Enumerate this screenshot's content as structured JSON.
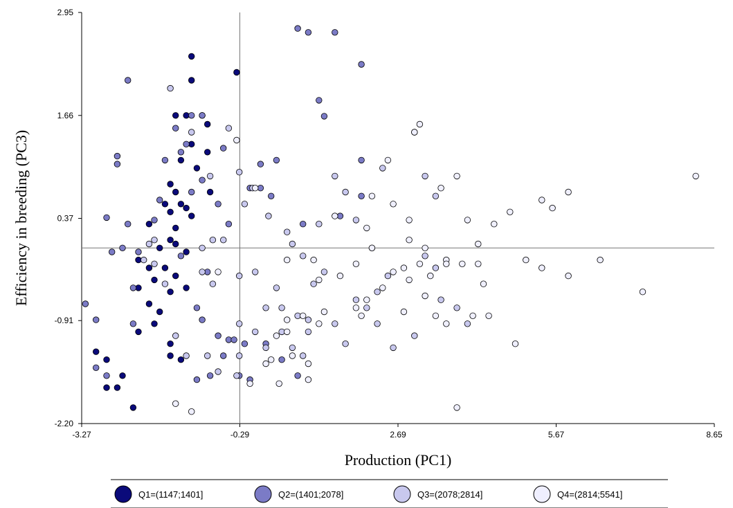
{
  "chart_data": {
    "type": "scatter",
    "title": "",
    "xlabel": "Production (PC1)",
    "ylabel": "Efficiency in breeding (PC3)",
    "xlim": [
      -3.27,
      8.65
    ],
    "ylim": [
      -2.2,
      2.95
    ],
    "x_ticks": [
      "-3.27",
      "-0.29",
      "2.69",
      "5.67",
      "8.65"
    ],
    "y_ticks": [
      "2.95",
      "1.66",
      "0.37",
      "-0.91",
      "-2.20"
    ],
    "reference_lines": {
      "x": -0.29,
      "y": 0.0
    },
    "grid": false,
    "legend_position": "bottom",
    "series": [
      {
        "name": "Q1=(1147;1401]",
        "color": "#0a0a7a",
        "points": [
          [
            -1.2,
            2.4
          ],
          [
            -1.2,
            2.1
          ],
          [
            -0.35,
            2.2
          ],
          [
            -1.5,
            1.66
          ],
          [
            -1.3,
            1.66
          ],
          [
            -1.0,
            1.66
          ],
          [
            -0.9,
            1.55
          ],
          [
            -1.2,
            1.3
          ],
          [
            -1.4,
            1.1
          ],
          [
            -0.9,
            1.2
          ],
          [
            -1.1,
            1.0
          ],
          [
            -1.6,
            0.8
          ],
          [
            -1.5,
            0.7
          ],
          [
            -1.7,
            0.55
          ],
          [
            -1.4,
            0.55
          ],
          [
            -1.6,
            0.45
          ],
          [
            -0.85,
            0.7
          ],
          [
            -1.3,
            0.5
          ],
          [
            -1.5,
            0.25
          ],
          [
            -1.2,
            0.4
          ],
          [
            -2.0,
            0.3
          ],
          [
            -1.6,
            0.1
          ],
          [
            -1.8,
            0.0
          ],
          [
            -1.5,
            0.05
          ],
          [
            -1.3,
            -0.05
          ],
          [
            -2.2,
            -0.15
          ],
          [
            -2.0,
            -0.25
          ],
          [
            -1.7,
            -0.25
          ],
          [
            -1.9,
            -0.4
          ],
          [
            -2.2,
            -0.5
          ],
          [
            -1.6,
            -0.55
          ],
          [
            -1.3,
            -0.5
          ],
          [
            -2.0,
            -0.7
          ],
          [
            -1.8,
            -0.8
          ],
          [
            -1.9,
            -0.95
          ],
          [
            -2.2,
            -1.05
          ],
          [
            -1.6,
            -1.2
          ],
          [
            -1.6,
            -1.35
          ],
          [
            -1.4,
            -1.4
          ],
          [
            -3.0,
            -1.3
          ],
          [
            -2.8,
            -1.4
          ],
          [
            -2.5,
            -1.6
          ],
          [
            -2.6,
            -1.75
          ],
          [
            -2.8,
            -1.75
          ],
          [
            -2.3,
            -2.0
          ],
          [
            -1.5,
            -0.35
          ]
        ]
      },
      {
        "name": "Q2=(1401;2078]",
        "color": "#7b7bc6",
        "points": [
          [
            -2.4,
            2.1
          ],
          [
            -1.2,
            1.66
          ],
          [
            -1.0,
            1.66
          ],
          [
            -1.5,
            1.5
          ],
          [
            -1.3,
            1.3
          ],
          [
            -1.4,
            1.2
          ],
          [
            -2.6,
            1.15
          ],
          [
            -2.6,
            1.05
          ],
          [
            -1.7,
            1.1
          ],
          [
            -0.7,
            0.55
          ],
          [
            -1.8,
            0.6
          ],
          [
            -1.0,
            0.85
          ],
          [
            -1.2,
            0.7
          ],
          [
            -1.9,
            0.35
          ],
          [
            -2.4,
            0.3
          ],
          [
            -2.8,
            0.38
          ],
          [
            -0.5,
            0.3
          ],
          [
            -0.6,
            1.25
          ],
          [
            -0.1,
            0.75
          ],
          [
            0.1,
            0.75
          ],
          [
            0.3,
            0.65
          ],
          [
            0.1,
            1.05
          ],
          [
            0.4,
            1.1
          ],
          [
            1.0,
            2.7
          ],
          [
            1.5,
            2.7
          ],
          [
            0.8,
            2.75
          ],
          [
            1.2,
            1.85
          ],
          [
            1.3,
            1.65
          ],
          [
            2.0,
            2.3
          ],
          [
            2.0,
            1.1
          ],
          [
            1.6,
            0.4
          ],
          [
            2.0,
            0.65
          ],
          [
            0.9,
            0.3
          ],
          [
            -0.9,
            -0.3
          ],
          [
            -1.4,
            -0.1
          ],
          [
            -2.2,
            -0.05
          ],
          [
            -2.5,
            0.0
          ],
          [
            -2.7,
            -0.05
          ],
          [
            -2.3,
            -0.5
          ],
          [
            -2.3,
            -0.95
          ],
          [
            -3.2,
            -0.7
          ],
          [
            -3.0,
            -0.9
          ],
          [
            -1.1,
            -0.75
          ],
          [
            -1.0,
            -0.9
          ],
          [
            -0.7,
            -1.1
          ],
          [
            -0.5,
            -1.15
          ],
          [
            -0.4,
            -1.15
          ],
          [
            -0.6,
            -1.35
          ],
          [
            -0.2,
            -1.2
          ],
          [
            0.2,
            -1.2
          ],
          [
            0.5,
            -1.4
          ],
          [
            -2.8,
            -1.6
          ],
          [
            -3.0,
            -1.5
          ],
          [
            -1.1,
            -1.65
          ],
          [
            -0.85,
            -1.6
          ],
          [
            -0.3,
            -1.6
          ],
          [
            -0.1,
            -1.65
          ],
          [
            0.8,
            -1.6
          ]
        ]
      },
      {
        "name": "Q3=(2078;2814]",
        "color": "#c8c8ee",
        "points": [
          [
            -1.6,
            2.0
          ],
          [
            -1.2,
            1.45
          ],
          [
            -0.85,
            0.9
          ],
          [
            -0.5,
            1.5
          ],
          [
            -0.3,
            0.95
          ],
          [
            -0.2,
            0.55
          ],
          [
            -0.05,
            0.75
          ],
          [
            0.25,
            0.4
          ],
          [
            0.6,
            0.2
          ],
          [
            0.7,
            0.05
          ],
          [
            0.9,
            -0.1
          ],
          [
            -0.6,
            0.1
          ],
          [
            -0.8,
            0.1
          ],
          [
            -1.0,
            0.0
          ],
          [
            -1.9,
            0.1
          ],
          [
            -2.0,
            0.05
          ],
          [
            -2.1,
            -0.15
          ],
          [
            -1.7,
            -0.45
          ],
          [
            -1.9,
            -0.2
          ],
          [
            -1.0,
            -0.3
          ],
          [
            -0.8,
            -0.45
          ],
          [
            -0.3,
            -0.35
          ],
          [
            0.0,
            -0.3
          ],
          [
            0.4,
            -0.5
          ],
          [
            0.5,
            -0.75
          ],
          [
            0.8,
            -0.85
          ],
          [
            1.0,
            -0.9
          ],
          [
            0.2,
            -0.75
          ],
          [
            0.5,
            -1.05
          ],
          [
            0.7,
            -1.25
          ],
          [
            0.9,
            -1.35
          ],
          [
            -0.3,
            -0.95
          ],
          [
            0.0,
            -1.05
          ],
          [
            0.2,
            -1.25
          ],
          [
            1.5,
            0.9
          ],
          [
            1.7,
            0.7
          ],
          [
            1.2,
            0.3
          ],
          [
            1.9,
            0.35
          ],
          [
            2.2,
            0.0
          ],
          [
            2.4,
            1.0
          ],
          [
            3.0,
            1.45
          ],
          [
            3.2,
            0.9
          ],
          [
            3.4,
            0.65
          ],
          [
            3.2,
            -0.1
          ],
          [
            3.4,
            -0.25
          ],
          [
            2.5,
            -0.35
          ],
          [
            2.3,
            -0.55
          ],
          [
            1.9,
            -0.65
          ],
          [
            2.1,
            -0.75
          ],
          [
            1.5,
            -0.95
          ],
          [
            1.7,
            -1.2
          ],
          [
            2.3,
            -0.95
          ],
          [
            2.6,
            -1.25
          ],
          [
            3.0,
            -1.1
          ],
          [
            3.5,
            -0.65
          ],
          [
            3.8,
            -0.75
          ],
          [
            4.0,
            -0.95
          ],
          [
            -0.3,
            -1.35
          ],
          [
            -0.35,
            -1.6
          ],
          [
            -0.7,
            -1.55
          ],
          [
            -0.9,
            -1.35
          ],
          [
            -1.3,
            -1.35
          ],
          [
            -1.5,
            -1.1
          ],
          [
            1.1,
            -0.45
          ],
          [
            1.3,
            -0.3
          ],
          [
            1.0,
            -1.05
          ]
        ]
      },
      {
        "name": "Q4=(2814;5541]",
        "color": "#efefff",
        "points": [
          [
            -0.35,
            1.35
          ],
          [
            0.0,
            0.75
          ],
          [
            -0.7,
            -0.3
          ],
          [
            0.6,
            -0.15
          ],
          [
            1.1,
            -0.15
          ],
          [
            1.2,
            -0.4
          ],
          [
            1.3,
            -0.8
          ],
          [
            1.6,
            -0.35
          ],
          [
            1.9,
            -0.2
          ],
          [
            2.2,
            0.0
          ],
          [
            2.6,
            -0.3
          ],
          [
            2.8,
            -0.25
          ],
          [
            3.1,
            -0.2
          ],
          [
            3.3,
            -0.35
          ],
          [
            3.6,
            -0.15
          ],
          [
            4.2,
            -0.2
          ],
          [
            4.3,
            -0.45
          ],
          [
            5.1,
            -0.15
          ],
          [
            5.4,
            -0.25
          ],
          [
            5.9,
            -0.35
          ],
          [
            6.5,
            -0.15
          ],
          [
            7.3,
            -0.55
          ],
          [
            8.3,
            0.9
          ],
          [
            5.9,
            0.7
          ],
          [
            5.6,
            0.5
          ],
          [
            5.4,
            0.6
          ],
          [
            4.8,
            0.45
          ],
          [
            4.5,
            0.3
          ],
          [
            4.2,
            0.05
          ],
          [
            3.9,
            -0.2
          ],
          [
            3.2,
            0.0
          ],
          [
            2.9,
            0.35
          ],
          [
            2.6,
            0.55
          ],
          [
            3.5,
            0.75
          ],
          [
            3.8,
            0.9
          ],
          [
            4.0,
            0.35
          ],
          [
            4.1,
            -0.85
          ],
          [
            2.1,
            0.25
          ],
          [
            1.5,
            0.4
          ],
          [
            2.2,
            0.65
          ],
          [
            2.5,
            1.1
          ],
          [
            3.1,
            1.55
          ],
          [
            3.0,
            1.45
          ],
          [
            2.9,
            0.1
          ],
          [
            2.9,
            -0.4
          ],
          [
            3.6,
            -0.2
          ],
          [
            3.2,
            -0.6
          ],
          [
            2.8,
            -0.8
          ],
          [
            2.4,
            -0.5
          ],
          [
            2.1,
            -0.65
          ],
          [
            1.9,
            -0.75
          ],
          [
            2.0,
            -0.85
          ],
          [
            3.4,
            -0.85
          ],
          [
            3.6,
            -0.95
          ],
          [
            4.4,
            -0.85
          ],
          [
            4.9,
            -1.2
          ],
          [
            3.8,
            -2.0
          ],
          [
            1.2,
            -0.95
          ],
          [
            0.9,
            -0.85
          ],
          [
            0.6,
            -0.9
          ],
          [
            0.6,
            -1.05
          ],
          [
            0.4,
            -1.1
          ],
          [
            0.3,
            -1.4
          ],
          [
            0.2,
            -1.45
          ],
          [
            0.7,
            -1.35
          ],
          [
            1.0,
            -1.45
          ],
          [
            1.0,
            -1.65
          ],
          [
            0.45,
            -1.7
          ],
          [
            -0.1,
            -1.7
          ],
          [
            -1.2,
            -2.05
          ],
          [
            -1.5,
            -1.95
          ]
        ]
      }
    ]
  }
}
